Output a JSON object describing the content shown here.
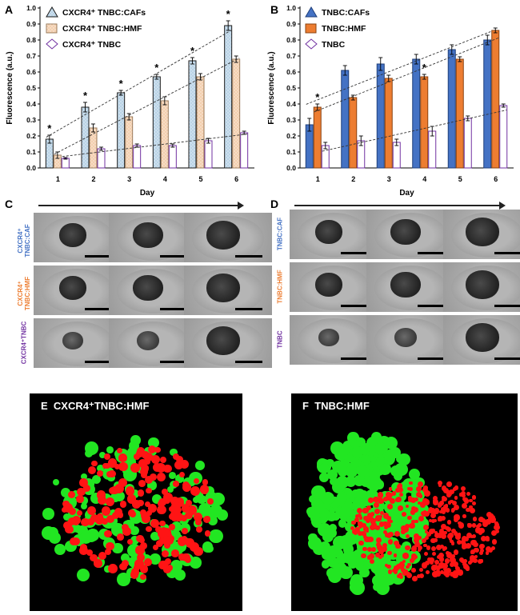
{
  "panels": {
    "A": "A",
    "B": "B",
    "C": "C",
    "D": "D",
    "E": "E",
    "F": "F"
  },
  "colors": {
    "caf_hatched": "#b9d3e6",
    "hmf_hatched": "#f3cfae",
    "tnbc_purple": "#7030a0",
    "caf_blue": "#4472c4",
    "hmf_orange": "#ed7d31",
    "label_blue": "#4472c4",
    "label_orange": "#ed7d31",
    "label_purple": "#7030a0",
    "green": "#22e622",
    "red": "#ff1414"
  },
  "chart_data": [
    {
      "type": "bar",
      "panel": "A",
      "categories": [
        "1",
        "2",
        "3",
        "4",
        "5",
        "6"
      ],
      "series": [
        {
          "name": "CXCR4⁺ TNBC:CAFs",
          "values": [
            0.18,
            0.38,
            0.47,
            0.57,
            0.67,
            0.89
          ],
          "errors": [
            0.025,
            0.03,
            0.015,
            0.015,
            0.02,
            0.03
          ],
          "sig": [
            true,
            true,
            true,
            true,
            true,
            true
          ]
        },
        {
          "name": "CXCR4⁺ TNBC:HMF",
          "values": [
            0.08,
            0.25,
            0.32,
            0.42,
            0.57,
            0.68
          ],
          "errors": [
            0.02,
            0.025,
            0.02,
            0.025,
            0.02,
            0.02
          ]
        },
        {
          "name": "CXCR4⁺ TNBC",
          "values": [
            0.06,
            0.12,
            0.14,
            0.14,
            0.17,
            0.22
          ],
          "errors": [
            0.005,
            0.01,
            0.01,
            0.01,
            0.015,
            0.01
          ]
        }
      ],
      "xlabel": "Day",
      "ylabel": "Fluorescence (a.u.)",
      "ylim": [
        0,
        1.0
      ],
      "yticks": [
        "0.0",
        "0.1",
        "0.2",
        "0.3",
        "0.4",
        "0.5",
        "0.6",
        "0.7",
        "0.8",
        "0.9",
        "1.0"
      ],
      "sig_mark": "*"
    },
    {
      "type": "bar",
      "panel": "B",
      "categories": [
        "1",
        "2",
        "3",
        "4",
        "5",
        "6"
      ],
      "series": [
        {
          "name": "TNBC:CAFs",
          "values": [
            0.27,
            0.61,
            0.65,
            0.68,
            0.74,
            0.8
          ],
          "errors": [
            0.04,
            0.03,
            0.04,
            0.03,
            0.03,
            0.03
          ]
        },
        {
          "name": "TNBC:HMF",
          "values": [
            0.38,
            0.44,
            0.56,
            0.57,
            0.68,
            0.86
          ],
          "errors": [
            0.02,
            0.015,
            0.02,
            0.015,
            0.015,
            0.015
          ],
          "sig": [
            true,
            false,
            false,
            true,
            false,
            false
          ]
        },
        {
          "name": "TNBC",
          "values": [
            0.14,
            0.17,
            0.16,
            0.23,
            0.31,
            0.39
          ],
          "errors": [
            0.02,
            0.03,
            0.02,
            0.03,
            0.015,
            0.01
          ]
        }
      ],
      "xlabel": "Day",
      "ylabel": "Fluorescence (a.u.)",
      "ylim": [
        0,
        1.0
      ],
      "yticks": [
        "0.0",
        "0.1",
        "0.2",
        "0.3",
        "0.4",
        "0.5",
        "0.6",
        "0.7",
        "0.8",
        "0.9",
        "1.0"
      ],
      "sig_mark": "*"
    }
  ],
  "micrographs": {
    "C": {
      "rows": [
        {
          "label_line1": "CXCR4⁺",
          "label_line2": "TNBC:CAF",
          "color": "#4472c4"
        },
        {
          "label_line1": "CXCR4⁺",
          "label_line2": "TNBC:HMF",
          "color": "#ed7d31"
        },
        {
          "label_line1": "CXCR4⁺TNBC",
          "label_line2": "",
          "color": "#7030a0"
        }
      ]
    },
    "D": {
      "rows": [
        {
          "label_line1": "TNBC:CAF",
          "label_line2": "",
          "color": "#4472c4"
        },
        {
          "label_line1": "TNBC:HMF",
          "label_line2": "",
          "color": "#ed7d31"
        },
        {
          "label_line1": "TNBC",
          "label_line2": "",
          "color": "#7030a0"
        }
      ]
    }
  },
  "fluorescence": {
    "E": {
      "title": "CXCR4⁺TNBC:HMF"
    },
    "F": {
      "title": "TNBC:HMF"
    }
  }
}
